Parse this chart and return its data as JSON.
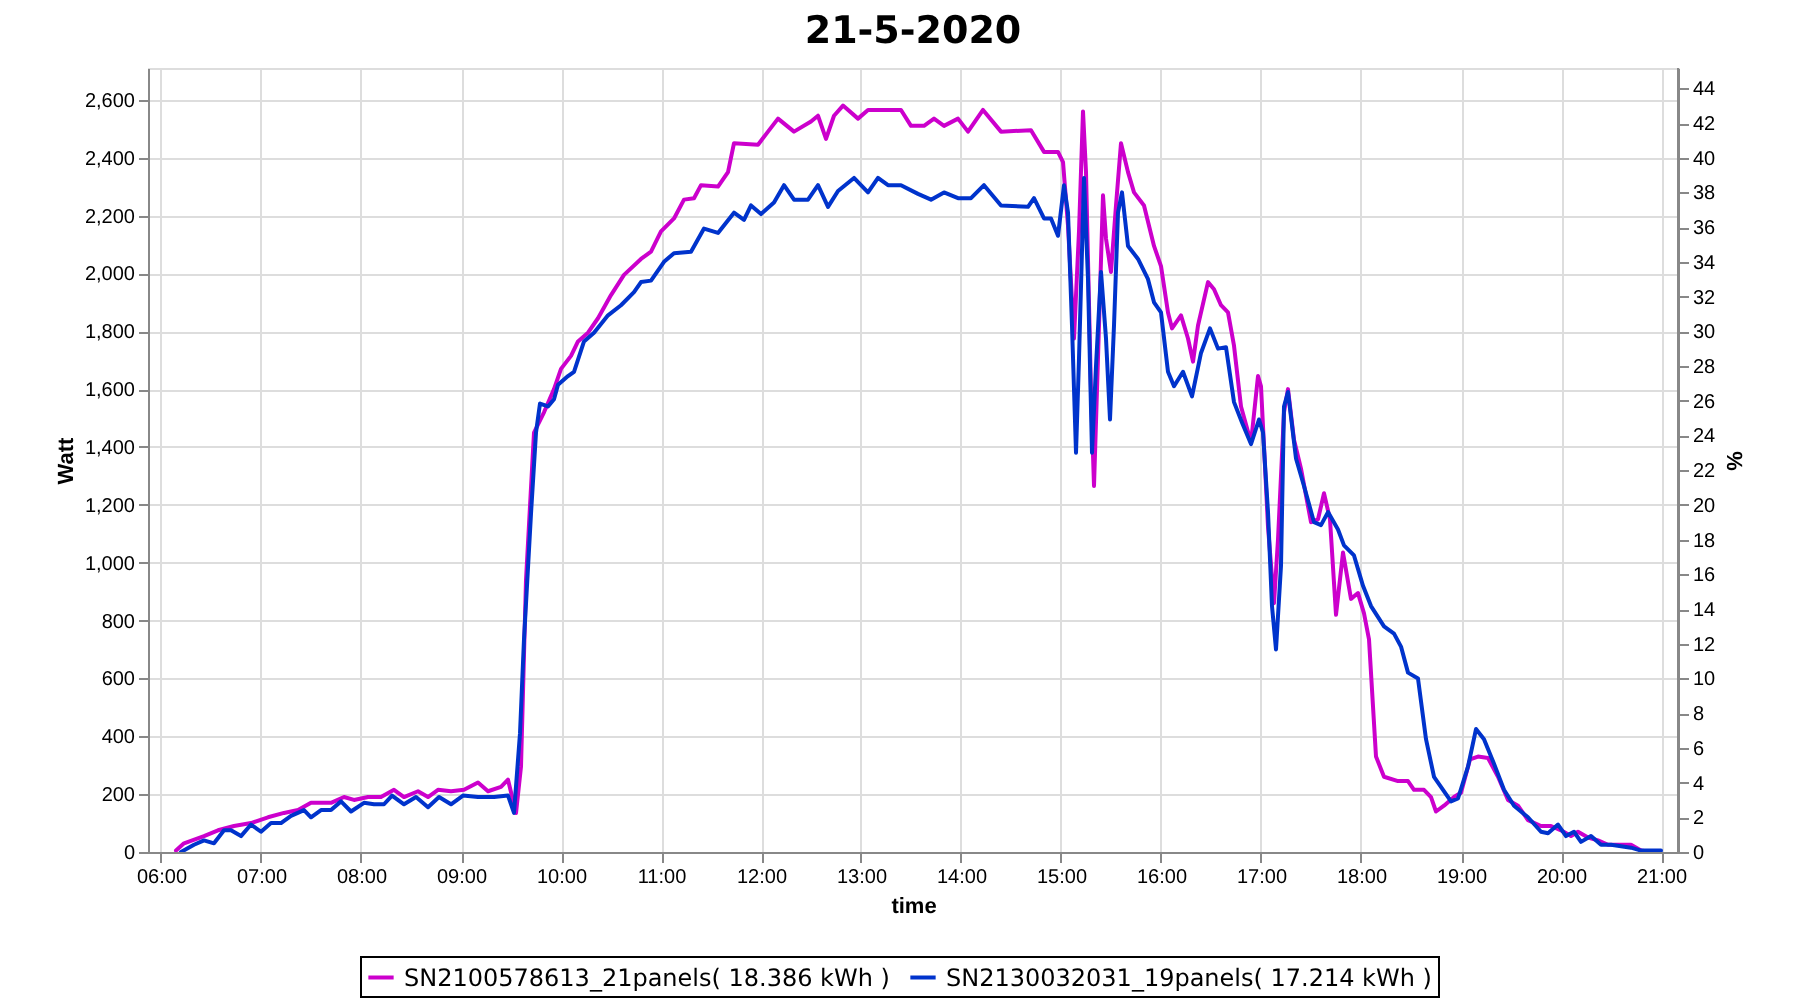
{
  "chart_data": {
    "type": "line",
    "title": "21-5-2020",
    "xlabel": "time",
    "ylabel": "Watt",
    "y2label": "%",
    "xlim": [
      5.87,
      21.17
    ],
    "xticks": [
      {
        "value": 6,
        "label": "06:00"
      },
      {
        "value": 7,
        "label": "07:00"
      },
      {
        "value": 8,
        "label": "08:00"
      },
      {
        "value": 9,
        "label": "09:00"
      },
      {
        "value": 10,
        "label": "10:00"
      },
      {
        "value": 11,
        "label": "11:00"
      },
      {
        "value": 12,
        "label": "12:00"
      },
      {
        "value": 13,
        "label": "13:00"
      },
      {
        "value": 14,
        "label": "14:00"
      },
      {
        "value": 15,
        "label": "15:00"
      },
      {
        "value": 16,
        "label": "16:00"
      },
      {
        "value": 17,
        "label": "17:00"
      },
      {
        "value": 18,
        "label": "18:00"
      },
      {
        "value": 19,
        "label": "19:00"
      },
      {
        "value": 20,
        "label": "20:00"
      },
      {
        "value": 21,
        "label": "21:00"
      }
    ],
    "ylim": [
      0,
      2710
    ],
    "yticks": [
      0,
      200,
      400,
      600,
      800,
      {
        "value": 1000,
        "label": "1,000"
      },
      {
        "value": 1200,
        "label": "1,200"
      },
      {
        "value": 1400,
        "label": "1,400"
      },
      {
        "value": 1600,
        "label": "1,600"
      },
      {
        "value": 1800,
        "label": "1,800"
      },
      {
        "value": 2000,
        "label": "2,000"
      },
      {
        "value": 2200,
        "label": "2,200"
      },
      {
        "value": 2400,
        "label": "2,400"
      },
      {
        "value": 2600,
        "label": "2,600"
      }
    ],
    "y2lim": [
      0,
      45.17
    ],
    "y2ticks": [
      0,
      2,
      4,
      6,
      8,
      10,
      12,
      14,
      16,
      18,
      20,
      22,
      24,
      26,
      28,
      30,
      32,
      34,
      36,
      38,
      40,
      42,
      44
    ],
    "grid": true,
    "legend": "bottom",
    "series": [
      {
        "name": "SN2100578613_21panels( 18.386 kWh )",
        "color": "#cc00cc",
        "x": [
          6.15,
          6.23,
          6.43,
          6.57,
          6.73,
          6.9,
          7.07,
          7.23,
          7.37,
          7.5,
          7.7,
          7.83,
          7.93,
          8.07,
          8.2,
          8.33,
          8.43,
          8.57,
          8.67,
          8.77,
          8.9,
          9.03,
          9.17,
          9.27,
          9.4,
          9.47,
          9.55,
          9.6,
          9.65,
          9.73,
          9.83,
          9.93,
          10.0,
          10.1,
          10.17,
          10.27,
          10.37,
          10.5,
          10.63,
          10.8,
          10.9,
          11.0,
          11.13,
          11.23,
          11.33,
          11.4,
          11.57,
          11.67,
          11.73,
          11.97,
          12.07,
          12.17,
          12.33,
          12.5,
          12.57,
          12.65,
          12.73,
          12.82,
          12.97,
          13.07,
          13.4,
          13.5,
          13.63,
          13.73,
          13.83,
          13.97,
          14.07,
          14.22,
          14.4,
          14.7,
          14.83,
          14.97,
          15.02,
          15.07,
          15.13,
          15.18,
          15.22,
          15.25,
          15.3,
          15.33,
          15.38,
          15.42,
          15.45,
          15.5,
          15.55,
          15.6,
          15.67,
          15.73,
          15.83,
          15.93,
          16.0,
          16.07,
          16.11,
          16.2,
          16.27,
          16.32,
          16.37,
          16.47,
          16.53,
          16.6,
          16.67,
          16.73,
          16.8,
          16.9,
          16.97,
          17.0,
          17.07,
          17.13,
          17.17,
          17.23,
          17.27,
          17.33,
          17.4,
          17.5,
          17.57,
          17.63,
          17.69,
          17.75,
          17.82,
          17.9,
          17.97,
          18.03,
          18.08,
          18.15,
          18.23,
          18.37,
          18.47,
          18.53,
          18.63,
          18.7,
          18.75,
          18.83,
          18.93,
          19.0,
          19.09,
          19.17,
          19.27,
          19.37,
          19.47,
          19.57,
          19.67,
          19.8,
          19.9,
          20.0,
          20.1,
          20.17,
          20.27,
          20.37,
          20.47,
          20.7,
          20.8,
          20.9
        ],
        "values": [
          5,
          30,
          55,
          75,
          90,
          100,
          120,
          135,
          145,
          170,
          170,
          190,
          180,
          190,
          190,
          215,
          190,
          210,
          190,
          215,
          210,
          215,
          240,
          210,
          225,
          250,
          135,
          295,
          940,
          1450,
          1520,
          1600,
          1670,
          1715,
          1765,
          1795,
          1845,
          1925,
          1995,
          2050,
          2075,
          2145,
          2190,
          2255,
          2260,
          2305,
          2300,
          2350,
          2450,
          2445,
          2490,
          2535,
          2490,
          2525,
          2545,
          2465,
          2545,
          2580,
          2535,
          2565,
          2565,
          2510,
          2510,
          2535,
          2510,
          2535,
          2490,
          2565,
          2490,
          2495,
          2420,
          2420,
          2385,
          2165,
          1775,
          2145,
          2560,
          2350,
          1590,
          1265,
          1820,
          2270,
          2120,
          2005,
          2235,
          2450,
          2350,
          2280,
          2235,
          2095,
          2025,
          1865,
          1810,
          1855,
          1775,
          1695,
          1820,
          1970,
          1945,
          1890,
          1865,
          1750,
          1540,
          1415,
          1645,
          1610,
          1125,
          860,
          1080,
          1520,
          1600,
          1425,
          1325,
          1140,
          1150,
          1240,
          1150,
          820,
          1035,
          875,
          895,
          825,
          735,
          330,
          260,
          245,
          245,
          215,
          215,
          190,
          140,
          160,
          190,
          205,
          320,
          330,
          325,
          260,
          180,
          160,
          110,
          90,
          90,
          75,
          55,
          70,
          50,
          40,
          25,
          25,
          5,
          0
        ]
      },
      {
        "name": "SN2130032031_19panels( 17.214 kWh )",
        "color": "#0033cc",
        "x": [
          6.2,
          6.33,
          6.43,
          6.53,
          6.63,
          6.7,
          6.8,
          6.9,
          7.0,
          7.1,
          7.2,
          7.3,
          7.43,
          7.5,
          7.6,
          7.7,
          7.8,
          7.9,
          8.03,
          8.13,
          8.23,
          8.31,
          8.43,
          8.55,
          8.67,
          8.78,
          8.9,
          9.02,
          9.17,
          9.33,
          9.47,
          9.53,
          9.59,
          9.63,
          9.7,
          9.75,
          9.79,
          9.87,
          9.93,
          9.97,
          10.07,
          10.13,
          10.23,
          10.33,
          10.47,
          10.6,
          10.73,
          10.8,
          10.9,
          11.03,
          11.13,
          11.3,
          11.43,
          11.57,
          11.73,
          11.83,
          11.9,
          12.0,
          12.13,
          12.23,
          12.33,
          12.47,
          12.57,
          12.67,
          12.77,
          12.93,
          13.07,
          13.17,
          13.27,
          13.4,
          13.57,
          13.7,
          13.83,
          13.97,
          14.1,
          14.23,
          14.4,
          14.67,
          14.73,
          14.83,
          14.9,
          14.97,
          15.03,
          15.07,
          15.11,
          15.15,
          15.18,
          15.23,
          15.27,
          15.31,
          15.35,
          15.4,
          15.45,
          15.49,
          15.53,
          15.57,
          15.61,
          15.67,
          15.77,
          15.87,
          15.93,
          16.0,
          16.07,
          16.13,
          16.22,
          16.31,
          16.4,
          16.49,
          16.57,
          16.65,
          16.73,
          16.81,
          16.9,
          16.98,
          17.02,
          17.07,
          17.11,
          17.15,
          17.2,
          17.23,
          17.27,
          17.35,
          17.43,
          17.53,
          17.6,
          17.67,
          17.77,
          17.83,
          17.93,
          18.02,
          18.1,
          18.23,
          18.33,
          18.4,
          18.47,
          18.57,
          18.65,
          18.73,
          18.9,
          18.97,
          19.07,
          19.15,
          19.23,
          19.33,
          19.43,
          19.53,
          19.67,
          19.8,
          19.87,
          19.97,
          20.05,
          20.13,
          20.2,
          20.3,
          20.4,
          20.5,
          20.7,
          20.8,
          21.0
        ],
        "values": [
          0,
          25,
          40,
          30,
          75,
          75,
          55,
          95,
          70,
          100,
          100,
          125,
          145,
          120,
          145,
          145,
          175,
          140,
          170,
          165,
          165,
          195,
          165,
          190,
          155,
          190,
          165,
          195,
          190,
          190,
          195,
          135,
          410,
          735,
          1170,
          1450,
          1550,
          1540,
          1565,
          1615,
          1645,
          1660,
          1765,
          1795,
          1855,
          1890,
          1935,
          1970,
          1975,
          2040,
          2070,
          2075,
          2155,
          2140,
          2210,
          2185,
          2235,
          2205,
          2245,
          2305,
          2255,
          2255,
          2305,
          2230,
          2285,
          2330,
          2280,
          2330,
          2305,
          2305,
          2275,
          2255,
          2280,
          2260,
          2260,
          2305,
          2235,
          2230,
          2260,
          2190,
          2190,
          2130,
          2305,
          2210,
          1820,
          1380,
          1705,
          2330,
          1980,
          1380,
          1680,
          2005,
          1775,
          1495,
          1820,
          2210,
          2280,
          2095,
          2050,
          1980,
          1900,
          1865,
          1660,
          1610,
          1660,
          1575,
          1725,
          1810,
          1740,
          1745,
          1555,
          1485,
          1410,
          1495,
          1450,
          1175,
          850,
          700,
          990,
          1540,
          1590,
          1360,
          1265,
          1140,
          1130,
          1175,
          1115,
          1060,
          1025,
          920,
          850,
          780,
          755,
          710,
          620,
          600,
          390,
          260,
          175,
          185,
          295,
          425,
          390,
          305,
          215,
          160,
          120,
          70,
          65,
          95,
          55,
          70,
          35,
          55,
          25,
          25,
          15,
          5,
          5
        ]
      }
    ]
  }
}
